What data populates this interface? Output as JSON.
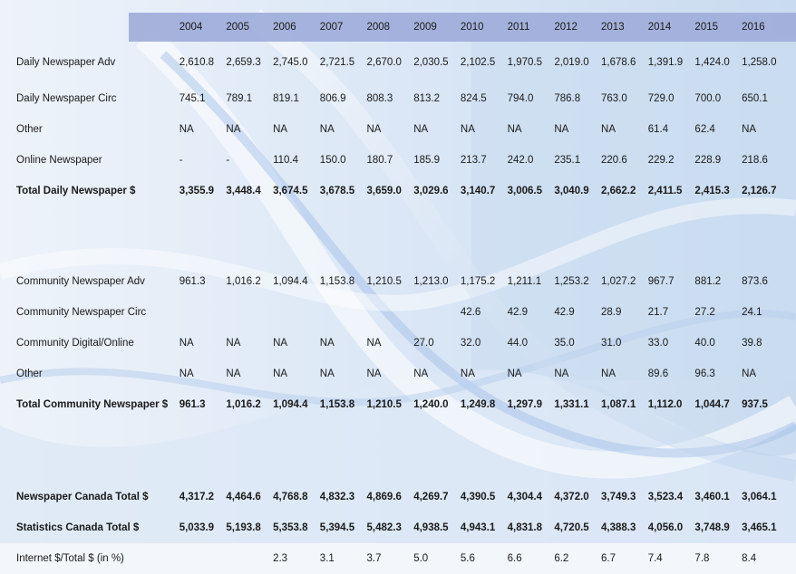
{
  "table": {
    "years": [
      "2004",
      "2005",
      "2006",
      "2007",
      "2008",
      "2009",
      "2010",
      "2011",
      "2012",
      "2013",
      "2014",
      "2015",
      "2016"
    ],
    "rows": [
      {
        "label": "Daily Newspaper Adv",
        "bold": false,
        "values": [
          "2,610.8",
          "2,659.3",
          "2,745.0",
          "2,721.5",
          "2,670.0",
          "2,030.5",
          "2,102.5",
          "1,970.5",
          "2,019.0",
          "1,678.6",
          "1,391.9",
          "1,424.0",
          "1,258.0"
        ]
      },
      {
        "label": "Daily Newspaper Circ",
        "bold": false,
        "values": [
          "745.1",
          "789.1",
          "819.1",
          "806.9",
          "808.3",
          "813.2",
          "824.5",
          "794.0",
          "786.8",
          "763.0",
          "729.0",
          "700.0",
          "650.1"
        ]
      },
      {
        "label": "Other",
        "bold": false,
        "values": [
          "NA",
          "NA",
          "NA",
          "NA",
          "NA",
          "NA",
          "NA",
          "NA",
          "NA",
          "NA",
          "61.4",
          "62.4",
          "NA"
        ]
      },
      {
        "label": "Online Newspaper",
        "bold": false,
        "values": [
          "-",
          "-",
          "110.4",
          "150.0",
          "180.7",
          "185.9",
          "213.7",
          "242.0",
          "235.1",
          "220.6",
          "229.2",
          "228.9",
          "218.6"
        ]
      },
      {
        "label": "Total Daily Newspaper $",
        "bold": true,
        "values": [
          "3,355.9",
          "3,448.4",
          "3,674.5",
          "3,678.5",
          "3,659.0",
          "3,029.6",
          "3,140.7",
          "3,006.5",
          "3,040.9",
          "2,662.2",
          "2,411.5",
          "2,415.3",
          "2,126.7"
        ]
      },
      {
        "label": "",
        "bold": false,
        "values": [
          "",
          "",
          "",
          "",
          "",
          "",
          "",
          "",
          "",
          "",
          "",
          "",
          ""
        ]
      },
      {
        "label": "Community Newspaper Adv",
        "bold": false,
        "values": [
          "961.3",
          "1,016.2",
          "1,094.4",
          "1,153.8",
          "1,210.5",
          "1,213.0",
          "1,175.2",
          "1,211.1",
          "1,253.2",
          "1,027.2",
          "967.7",
          "881.2",
          "873.6"
        ]
      },
      {
        "label": "Community Newspaper Circ",
        "bold": false,
        "values": [
          "",
          "",
          "",
          "",
          "",
          "",
          "42.6",
          "42.9",
          "42.9",
          "28.9",
          "21.7",
          "27.2",
          "24.1"
        ]
      },
      {
        "label": "Community Digital/Online",
        "bold": false,
        "values": [
          "NA",
          "NA",
          "NA",
          "NA",
          "NA",
          "27.0",
          "32.0",
          "44.0",
          "35.0",
          "31.0",
          "33.0",
          "40.0",
          "39.8"
        ]
      },
      {
        "label": "Other",
        "bold": false,
        "values": [
          "NA",
          "NA",
          "NA",
          "NA",
          "NA",
          "NA",
          "NA",
          "NA",
          "NA",
          "NA",
          "89.6",
          "96.3",
          "NA"
        ]
      },
      {
        "label": "Total Community Newspaper $",
        "bold": true,
        "values": [
          "961.3",
          "1,016.2",
          "1,094.4",
          "1,153.8",
          "1,210.5",
          "1,240.0",
          "1,249.8",
          "1,297.9",
          "1,331.1",
          "1,087.1",
          "1,112.0",
          "1,044.7",
          "937.5"
        ]
      },
      {
        "label": "",
        "bold": false,
        "values": [
          "",
          "",
          "",
          "",
          "",
          "",
          "",
          "",
          "",
          "",
          "",
          "",
          ""
        ]
      },
      {
        "label": "Newspaper Canada Total $",
        "bold": true,
        "values": [
          "4,317.2",
          "4,464.6",
          "4,768.8",
          "4,832.3",
          "4,869.6",
          "4,269.7",
          "4,390.5",
          "4,304.4",
          "4,372.0",
          "3,749.3",
          "3,523.4",
          "3,460.1",
          "3,064.1"
        ]
      },
      {
        "label": "Statistics Canada Total $",
        "bold": true,
        "values": [
          "5,033.9",
          "5,193.8",
          "5,353.8",
          "5,394.5",
          "5,482.3",
          "4,938.5",
          "4,943.1",
          "4,831.8",
          "4,720.5",
          "4,388.3",
          "4,056.0",
          "3,748.9",
          "3,465.1"
        ]
      },
      {
        "label": "Internet $/Total $ (in %)",
        "bold": false,
        "values": [
          "",
          "",
          "2.3",
          "3.1",
          "3.7",
          "5.0",
          "5.6",
          "6.6",
          "6.2",
          "6.7",
          "7.4",
          "7.8",
          "8.4"
        ]
      }
    ]
  },
  "chart_data": {
    "type": "table",
    "columns": [
      "2004",
      "2005",
      "2006",
      "2007",
      "2008",
      "2009",
      "2010",
      "2011",
      "2012",
      "2013",
      "2014",
      "2015",
      "2016"
    ],
    "rows": [
      {
        "name": "Daily Newspaper Adv",
        "values": [
          2610.8,
          2659.3,
          2745.0,
          2721.5,
          2670.0,
          2030.5,
          2102.5,
          1970.5,
          2019.0,
          1678.6,
          1391.9,
          1424.0,
          1258.0
        ]
      },
      {
        "name": "Daily Newspaper Circ",
        "values": [
          745.1,
          789.1,
          819.1,
          806.9,
          808.3,
          813.2,
          824.5,
          794.0,
          786.8,
          763.0,
          729.0,
          700.0,
          650.1
        ]
      },
      {
        "name": "Other",
        "values": [
          null,
          null,
          null,
          null,
          null,
          null,
          null,
          null,
          null,
          null,
          61.4,
          62.4,
          null
        ]
      },
      {
        "name": "Online Newspaper",
        "values": [
          null,
          null,
          110.4,
          150.0,
          180.7,
          185.9,
          213.7,
          242.0,
          235.1,
          220.6,
          229.2,
          228.9,
          218.6
        ]
      },
      {
        "name": "Total Daily Newspaper $",
        "values": [
          3355.9,
          3448.4,
          3674.5,
          3678.5,
          3659.0,
          3029.6,
          3140.7,
          3006.5,
          3040.9,
          2662.2,
          2411.5,
          2415.3,
          2126.7
        ]
      },
      {
        "name": "Community Newspaper Adv",
        "values": [
          961.3,
          1016.2,
          1094.4,
          1153.8,
          1210.5,
          1213.0,
          1175.2,
          1211.1,
          1253.2,
          1027.2,
          967.7,
          881.2,
          873.6
        ]
      },
      {
        "name": "Community Newspaper Circ",
        "values": [
          null,
          null,
          null,
          null,
          null,
          null,
          42.6,
          42.9,
          42.9,
          28.9,
          21.7,
          27.2,
          24.1
        ]
      },
      {
        "name": "Community Digital/Online",
        "values": [
          null,
          null,
          null,
          null,
          null,
          27.0,
          32.0,
          44.0,
          35.0,
          31.0,
          33.0,
          40.0,
          39.8
        ]
      },
      {
        "name": "Other",
        "values": [
          null,
          null,
          null,
          null,
          null,
          null,
          null,
          null,
          null,
          null,
          89.6,
          96.3,
          null
        ]
      },
      {
        "name": "Total Community Newspaper $",
        "values": [
          961.3,
          1016.2,
          1094.4,
          1153.8,
          1210.5,
          1240.0,
          1249.8,
          1297.9,
          1331.1,
          1087.1,
          1112.0,
          1044.7,
          937.5
        ]
      },
      {
        "name": "Newspaper Canada Total $",
        "values": [
          4317.2,
          4464.6,
          4768.8,
          4832.3,
          4869.6,
          4269.7,
          4390.5,
          4304.4,
          4372.0,
          3749.3,
          3523.4,
          3460.1,
          3064.1
        ]
      },
      {
        "name": "Statistics Canada Total $",
        "values": [
          5033.9,
          5193.8,
          5353.8,
          5394.5,
          5482.3,
          4938.5,
          4943.1,
          4831.8,
          4720.5,
          4388.3,
          4056.0,
          3748.9,
          3465.1
        ]
      },
      {
        "name": "Internet $/Total $ (in %)",
        "values": [
          null,
          null,
          2.3,
          3.1,
          3.7,
          5.0,
          5.6,
          6.6,
          6.2,
          6.7,
          7.4,
          7.8,
          8.4
        ]
      }
    ]
  },
  "theme": {
    "header_band": "#a0acda",
    "wave_light": "#cfe0f3",
    "wave_mid": "#9fbde6",
    "wave_dark": "#5b82c4",
    "panel": "#e3ecf8"
  }
}
